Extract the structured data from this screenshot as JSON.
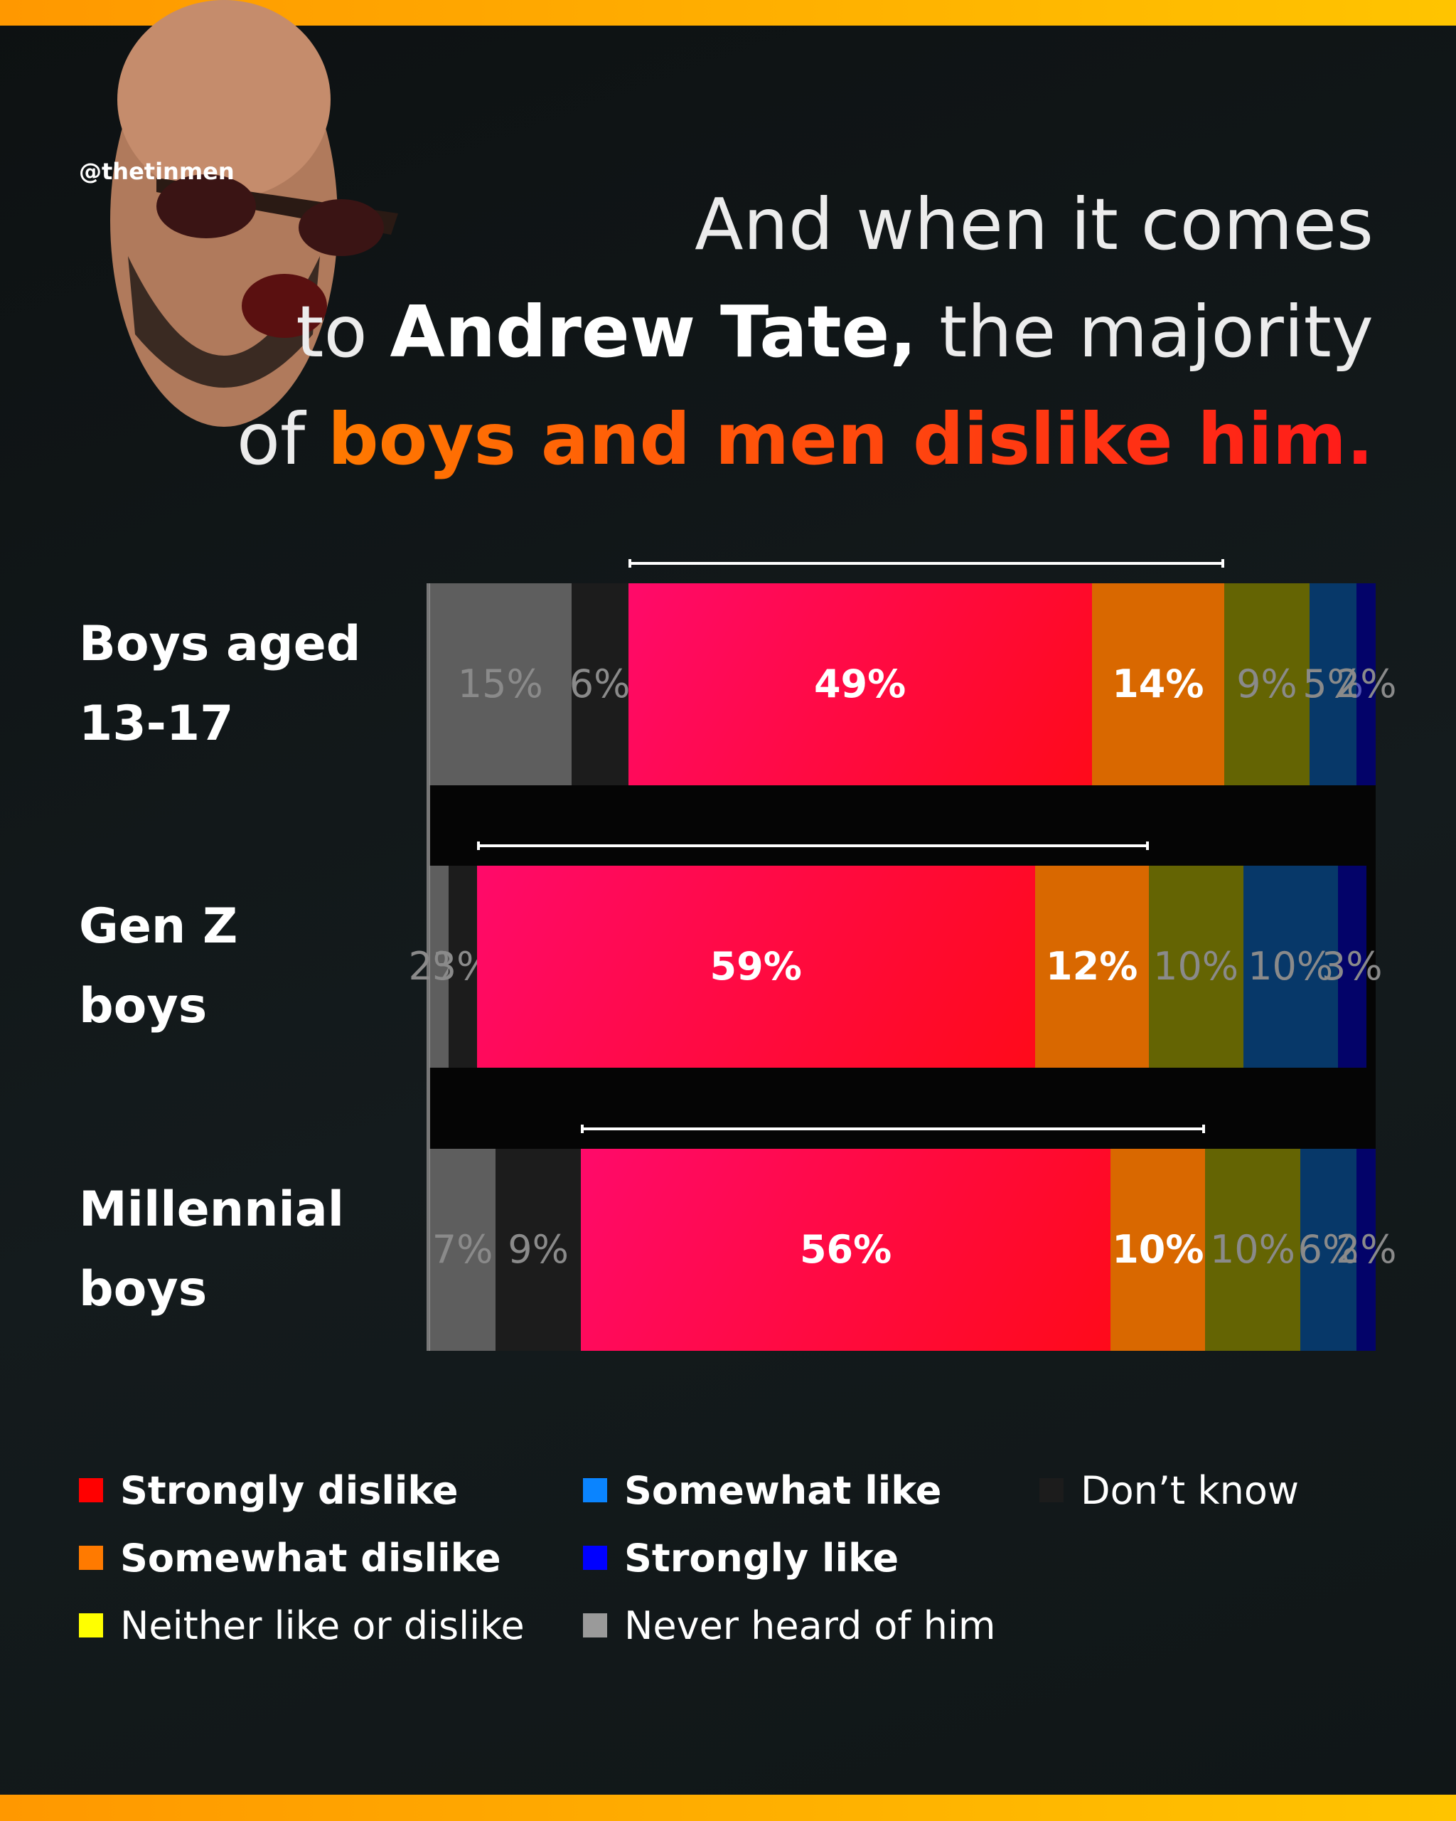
{
  "watermark": "@thetinmen",
  "title": [
    [
      "And when it comes"
    ],
    [
      "to ",
      "Andrew Tate,",
      " the majority"
    ],
    [
      "of ",
      "boys and men dislike him."
    ]
  ],
  "chart_data": {
    "type": "stacked-bar",
    "categories": [
      "Boys aged 13-17",
      "Gen Z boys",
      "Millennial boys"
    ],
    "series": [
      {
        "name": "Never heard of him",
        "color": "#9a9a9a",
        "values": [
          15,
          2,
          7
        ],
        "value_labels": [
          "15%",
          "2%",
          "7%"
        ]
      },
      {
        "name": "Don’t know",
        "color": "#1c1c1c",
        "values": [
          6,
          3,
          9
        ],
        "value_labels": [
          "6%",
          "3%",
          "9%"
        ]
      },
      {
        "name": "Strongly dislike",
        "color": "#ff0000",
        "values": [
          49,
          59,
          56
        ],
        "value_labels": [
          "49%",
          "59%",
          "56%"
        ]
      },
      {
        "name": "Somewhat dislike",
        "color": "#ff7a00",
        "values": [
          14,
          12,
          10
        ],
        "value_labels": [
          "14%",
          "12%",
          "10%"
        ]
      },
      {
        "name": "Neither like or dislike",
        "color": "#ffff00",
        "values": [
          9,
          10,
          10
        ],
        "value_labels": [
          "9%",
          "10%",
          "10%"
        ]
      },
      {
        "name": "Somewhat like",
        "color": "#0a84ff",
        "values": [
          5,
          10,
          6
        ],
        "value_labels": [
          "5%",
          "10%",
          "6%"
        ]
      },
      {
        "name": "Strongly like",
        "color": "#0000ff",
        "values": [
          2,
          3,
          2
        ],
        "value_labels": [
          "2%",
          "3%",
          "2%"
        ]
      }
    ],
    "xlim": [
      0,
      100
    ]
  }
}
